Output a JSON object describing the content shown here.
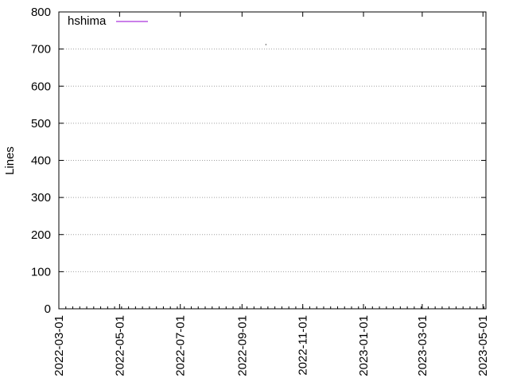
{
  "chart_data": {
    "type": "line",
    "title": "",
    "xlabel": "",
    "ylabel": "Lines",
    "x_type": "date",
    "xlim": [
      "2022-03-01",
      "2023-05-04"
    ],
    "ylim": [
      0,
      800
    ],
    "y_ticks": [
      0,
      100,
      200,
      300,
      400,
      500,
      600,
      700,
      800
    ],
    "x_ticks": [
      "2022-03-01",
      "2022-05-01",
      "2022-07-01",
      "2022-09-01",
      "2022-11-01",
      "2023-01-01",
      "2023-03-01",
      "2023-05-01"
    ],
    "grid": "horizontal dotted",
    "legend_position": "top-left",
    "series": [
      {
        "name": "hshima",
        "color": "#9400d3",
        "points": [
          {
            "x": "2022-09-25",
            "y": 712
          }
        ]
      }
    ]
  }
}
